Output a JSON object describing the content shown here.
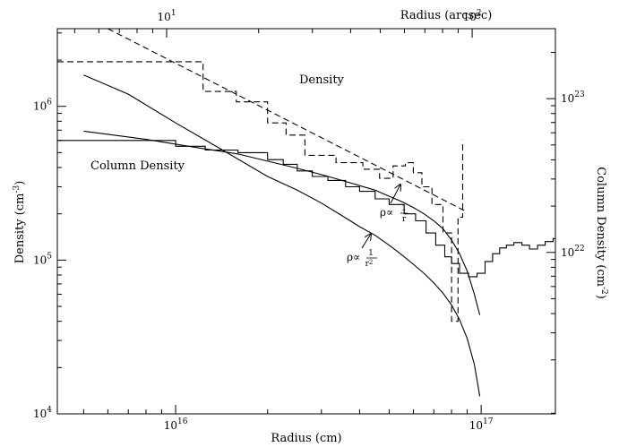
{
  "chart_data": {
    "type": "line",
    "xlabel": "Radius (cm)",
    "x2label": "Radius (arcsec)",
    "ylabel": "Density (cm",
    "ylabel_exp": "-3",
    "ylabel_end": ")",
    "y2label": "Column Density (cm",
    "y2label_exp": "-2",
    "y2label_end": ")",
    "x_scale": "log",
    "y_scale": "log",
    "xlim": [
      4100000000000000.0,
      1.75e+17
    ],
    "ylim": [
      10000,
      3200000
    ],
    "x2_per_cm": 1.07e-15,
    "y2_offset_decades": 16.95,
    "x_ticks": [
      {
        "value": 1e+16,
        "base": "10",
        "exp": "16"
      },
      {
        "value": 1e+17,
        "base": "10",
        "exp": "17"
      }
    ],
    "y_ticks": [
      {
        "value": 10000,
        "base": "10",
        "exp": "4"
      },
      {
        "value": 100000,
        "base": "10",
        "exp": "5"
      },
      {
        "value": 1000000,
        "base": "10",
        "exp": "6"
      }
    ],
    "x2_ticks": [
      {
        "value": 10,
        "base": "10",
        "exp": "1"
      },
      {
        "value": 100,
        "base": "10",
        "exp": "2"
      }
    ],
    "y2_ticks": [
      {
        "value": 1e+22,
        "base": "10",
        "exp": "22"
      },
      {
        "value": 1e+23,
        "base": "10",
        "exp": "23"
      }
    ],
    "annotations": {
      "density": "Density",
      "column_density": "Column Density",
      "rho_r": {
        "prefix": "ρ∝",
        "num": "1",
        "den": "r",
        "x": 5.7e+16,
        "y": 220000
      },
      "rho_r2": {
        "prefix": "ρ∝",
        "num": "1",
        "den": "r",
        "den_exp": "2",
        "x": 4.3e+16,
        "y": 130000
      }
    },
    "series": [
      {
        "style": "dashed-step",
        "x": [
          4100000000000000.0,
          1.23e+16,
          1.23e+16,
          1.58e+16,
          1.58e+16,
          2e+16,
          2e+16,
          2.3e+16,
          2.3e+16,
          2.65e+16,
          2.65e+16,
          3.35e+16,
          3.35e+16,
          4.1e+16,
          4.1e+16,
          4.65e+16,
          4.65e+16,
          5.15e+16,
          5.15e+16,
          5.65e+16,
          5.65e+16,
          6e+16,
          6e+16,
          6.4e+16,
          6.4e+16,
          6.9e+16,
          6.9e+16,
          7.5e+16,
          7.5e+16,
          8e+16,
          8e+16,
          8.4e+16,
          8.4e+16,
          8.7e+16,
          8.7e+16
        ],
        "y": [
          1950000,
          1950000,
          1250000,
          1250000,
          1070000,
          1070000,
          780000,
          780000,
          650000,
          650000,
          480000,
          480000,
          430000,
          430000,
          390000,
          390000,
          340000,
          340000,
          410000,
          410000,
          430000,
          430000,
          370000,
          370000,
          300000,
          300000,
          230000,
          230000,
          150000,
          150000,
          40000,
          40000,
          190000,
          190000,
          600000
        ]
      },
      {
        "style": "dashed",
        "x": [
          6000000000000000.0,
          8.8e+16
        ],
        "y": [
          3200000,
          210000
        ]
      },
      {
        "style": "solid-step",
        "x": [
          4100000000000000.0,
          1e+16,
          1e+16,
          1.25e+16,
          1.25e+16,
          1.6e+16,
          1.6e+16,
          2e+16,
          2e+16,
          2.25e+16,
          2.25e+16,
          2.5e+16,
          2.5e+16,
          2.8e+16,
          2.8e+16,
          3.15e+16,
          3.15e+16,
          3.6e+16,
          3.6e+16,
          4e+16,
          4e+16,
          4.5e+16,
          4.5e+16,
          5e+16,
          5e+16,
          5.6e+16,
          5.6e+16,
          6.1e+16,
          6.1e+16,
          6.6e+16,
          6.6e+16,
          7.1e+16,
          7.1e+16,
          7.6e+16,
          7.6e+16,
          8e+16,
          8e+16,
          8.5e+16,
          8.5e+16,
          9.1e+16,
          9.1e+16,
          9.7e+16,
          9.7e+16,
          1.03e+17,
          1.03e+17,
          1.09e+17,
          1.09e+17,
          1.15e+17,
          1.15e+17,
          1.21e+17,
          1.21e+17,
          1.28e+17,
          1.28e+17,
          1.36e+17,
          1.36e+17,
          1.44e+17,
          1.44e+17,
          1.53e+17,
          1.53e+17,
          1.62e+17,
          1.62e+17,
          1.72e+17,
          1.72e+17,
          1.75e+17
        ],
        "y": [
          600000,
          600000,
          550000,
          550000,
          520000,
          520000,
          500000,
          500000,
          450000,
          450000,
          420000,
          420000,
          380000,
          380000,
          350000,
          350000,
          330000,
          330000,
          300000,
          300000,
          280000,
          280000,
          250000,
          250000,
          230000,
          230000,
          200000,
          200000,
          180000,
          180000,
          150000,
          150000,
          125000,
          125000,
          105000,
          105000,
          95000,
          95000,
          82000,
          82000,
          78000,
          78000,
          82000,
          82000,
          98000,
          98000,
          110000,
          110000,
          120000,
          120000,
          125000,
          125000,
          130000,
          130000,
          125000,
          125000,
          118000,
          118000,
          125000,
          125000,
          132000,
          132000,
          138000,
          138000
        ]
      },
      {
        "style": "solid",
        "x": [
          5000000000000000.0,
          8000000000000000.0,
          1.2e+16,
          1.6e+16,
          2e+16,
          2.5e+16,
          3e+16,
          3.5e+16,
          4e+16,
          4.5e+16,
          5e+16,
          5.5e+16,
          6e+16,
          6.5e+16,
          7e+16,
          7.5e+16,
          8e+16,
          8.5e+16,
          9e+16,
          9.5e+16,
          9.9e+16
        ],
        "y": [
          690000,
          610000,
          535000,
          490000,
          440000,
          395000,
          360000,
          330000,
          305000,
          285000,
          260000,
          240000,
          220000,
          200000,
          180000,
          160000,
          135000,
          110000,
          85000,
          60000,
          44000
        ]
      },
      {
        "style": "solid",
        "x": [
          5000000000000000.0,
          7000000000000000.0,
          1e+16,
          1.4e+16,
          2e+16,
          2.5e+16,
          3e+16,
          3.5e+16,
          4e+16,
          4.5e+16,
          5e+16,
          5.5e+16,
          6e+16,
          6.5e+16,
          7e+16,
          7.5e+16,
          8e+16,
          8.5e+16,
          9e+16,
          9.5e+16,
          9.9e+16
        ],
        "y": [
          1600000,
          1200000,
          780000,
          530000,
          350000,
          285000,
          235000,
          195000,
          165000,
          145000,
          125000,
          108000,
          94000,
          82000,
          71000,
          61000,
          51000,
          41000,
          31000,
          21000,
          13000
        ]
      }
    ]
  }
}
